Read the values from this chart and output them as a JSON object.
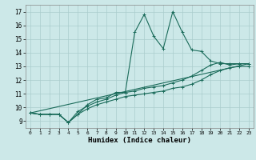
{
  "xlabel": "Humidex (Indice chaleur)",
  "bg_color": "#cce8e8",
  "grid_color": "#aacccc",
  "line_color": "#1a6b5a",
  "xlim": [
    -0.5,
    23.5
  ],
  "ylim": [
    8.5,
    17.5
  ],
  "xticks": [
    0,
    1,
    2,
    3,
    4,
    5,
    6,
    7,
    8,
    9,
    10,
    11,
    12,
    13,
    14,
    15,
    16,
    17,
    18,
    19,
    20,
    21,
    22,
    23
  ],
  "yticks": [
    9,
    10,
    11,
    12,
    13,
    14,
    15,
    16,
    17
  ],
  "series1_x": [
    0,
    1,
    2,
    3,
    4,
    5,
    6,
    7,
    8,
    9,
    10,
    11,
    12,
    13,
    14,
    15,
    16,
    17,
    18,
    19,
    20,
    21,
    22,
    23
  ],
  "series1_y": [
    9.6,
    9.5,
    9.5,
    9.5,
    8.9,
    9.5,
    10.2,
    10.6,
    10.7,
    11.1,
    11.1,
    15.5,
    16.8,
    15.2,
    14.3,
    17.0,
    15.5,
    14.2,
    14.1,
    13.4,
    13.2,
    13.2,
    13.2,
    13.2
  ],
  "series2_x": [
    0,
    1,
    2,
    3,
    4,
    5,
    6,
    7,
    8,
    9,
    10,
    11,
    12,
    13,
    14,
    15,
    16,
    17,
    18,
    19,
    20,
    21,
    22,
    23
  ],
  "series2_y": [
    9.6,
    9.5,
    9.5,
    9.5,
    8.9,
    9.7,
    10.1,
    10.4,
    10.6,
    10.9,
    11.1,
    11.2,
    11.4,
    11.5,
    11.6,
    11.8,
    12.0,
    12.3,
    12.7,
    13.1,
    13.3,
    13.1,
    13.2,
    13.2
  ],
  "series3_x": [
    0,
    1,
    2,
    3,
    4,
    5,
    6,
    7,
    8,
    9,
    10,
    11,
    12,
    13,
    14,
    15,
    16,
    17,
    18,
    19,
    20,
    21,
    22,
    23
  ],
  "series3_y": [
    9.6,
    9.5,
    9.5,
    9.5,
    8.9,
    9.5,
    9.9,
    10.2,
    10.4,
    10.6,
    10.8,
    10.9,
    11.0,
    11.1,
    11.2,
    11.4,
    11.5,
    11.7,
    12.0,
    12.4,
    12.7,
    12.9,
    13.0,
    13.0
  ],
  "series4_x": [
    0,
    23
  ],
  "series4_y": [
    9.6,
    13.2
  ],
  "markersize": 3,
  "linewidth": 0.8
}
